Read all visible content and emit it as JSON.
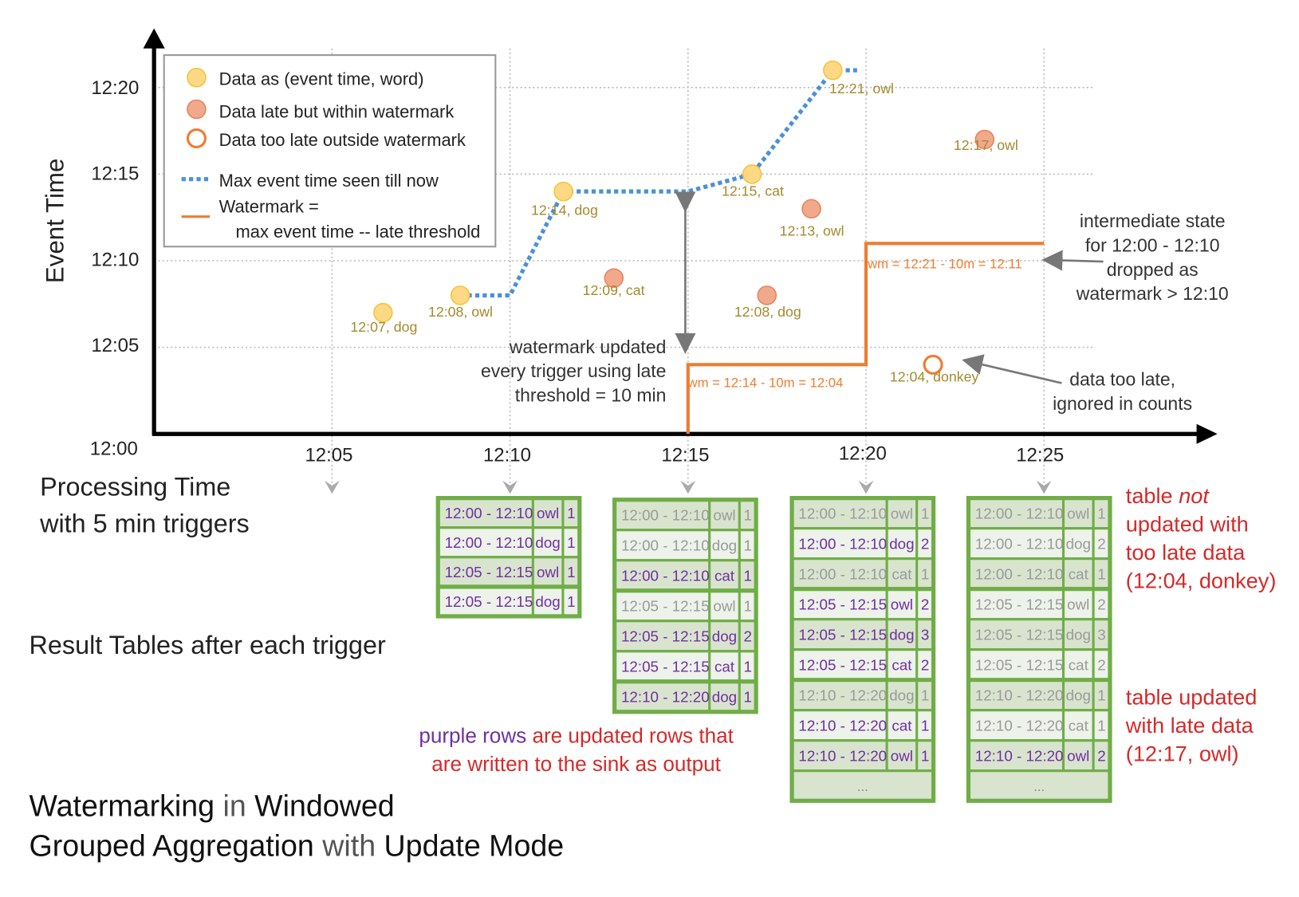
{
  "axes": {
    "y_label": "Event Time",
    "y_ticks": [
      "12:00",
      "12:05",
      "12:10",
      "12:15",
      "12:20"
    ],
    "x_ticks": [
      "12:05",
      "12:10",
      "12:15",
      "12:20",
      "12:25"
    ],
    "x_label_line1": "Processing Time",
    "x_label_line2": "with 5 min triggers"
  },
  "legend": {
    "data": "Data as (event time, word)",
    "late": "Data late but within watermark",
    "too_late": "Data too late outside watermark",
    "max_event": "Max event time seen till now",
    "watermark_1": "Watermark =",
    "watermark_2": "max event time -- late threshold"
  },
  "colors": {
    "on_time": "#fdd985",
    "late": "#f1a98b",
    "too_late": "#ed7d31",
    "max_line": "#4a90d9",
    "watermark": "#ed7d31",
    "table_border": "#70ad47",
    "updated_row": "#7030a0",
    "unchanged_row": "#9a9a9a",
    "note": "#d42a2a"
  },
  "points": [
    {
      "label": "12:07, dog",
      "processing": "12:06:26",
      "event": "12:07",
      "kind": "on_time"
    },
    {
      "label": "12:08, owl",
      "processing": "12:08:36",
      "event": "12:08",
      "kind": "on_time"
    },
    {
      "label": "12:14, dog",
      "processing": "12:11:30",
      "event": "12:14",
      "kind": "on_time"
    },
    {
      "label": "12:09, cat",
      "processing": "12:12:55",
      "event": "12:09",
      "kind": "late"
    },
    {
      "label": "12:15, cat",
      "processing": "12:16:48",
      "event": "12:15",
      "kind": "on_time"
    },
    {
      "label": "12:08, dog",
      "processing": "12:17:13",
      "event": "12:08",
      "kind": "late"
    },
    {
      "label": "12:13, owl",
      "processing": "12:18:28",
      "event": "12:13",
      "kind": "late"
    },
    {
      "label": "12:21, owl",
      "processing": "12:19:04",
      "event": "12:21",
      "kind": "on_time"
    },
    {
      "label": "12:04, donkey",
      "processing": "12:21:53",
      "event": "12:04",
      "kind": "too_late"
    },
    {
      "label": "12:17, owl",
      "processing": "12:23:20",
      "event": "12:17",
      "kind": "late"
    }
  ],
  "max_event_line": [
    [
      "12:08:36",
      "12:08"
    ],
    [
      "12:10",
      "12:08"
    ],
    [
      "12:11:30",
      "12:14"
    ],
    [
      "12:15",
      "12:14"
    ],
    [
      "12:16:48",
      "12:15"
    ],
    [
      "12:19:04",
      "12:21"
    ],
    [
      "12:19:45",
      "12:21"
    ]
  ],
  "watermark_line": [
    [
      "12:15",
      "12:00"
    ],
    [
      "12:15",
      "12:04"
    ],
    [
      "12:20",
      "12:04"
    ],
    [
      "12:20",
      "12:11"
    ],
    [
      "12:25",
      "12:11"
    ]
  ],
  "annotations": {
    "wm1": "wm = 12:14 - 10m = 12:04",
    "wm2": "wm = 12:21 - 10m = 12:11",
    "wm_updated": [
      "watermark updated",
      "every trigger using late",
      "threshold = 10 min"
    ],
    "intermediate": [
      "intermediate state",
      "for 12:00 - 12:10",
      "dropped as",
      "watermark > 12:10"
    ],
    "too_late": [
      "data too late,",
      "ignored in counts"
    ]
  },
  "result_tables_label": "Result Tables after each trigger",
  "tables": [
    {
      "trigger": "12:10",
      "rows": [
        [
          "12:00 - 12:10",
          "owl",
          "1",
          true
        ],
        [
          "12:00 - 12:10",
          "dog",
          "1",
          true
        ],
        [
          "12:05 - 12:15",
          "owl",
          "1",
          true
        ],
        [
          "12:05 - 12:15",
          "dog",
          "1",
          true
        ]
      ],
      "more": false
    },
    {
      "trigger": "12:15",
      "rows": [
        [
          "12:00 - 12:10",
          "owl",
          "1",
          false
        ],
        [
          "12:00 - 12:10",
          "dog",
          "1",
          false
        ],
        [
          "12:00 - 12:10",
          "cat",
          "1",
          true
        ],
        [
          "12:05 - 12:15",
          "owl",
          "1",
          false
        ],
        [
          "12:05 - 12:15",
          "dog",
          "2",
          true
        ],
        [
          "12:05 - 12:15",
          "cat",
          "1",
          true
        ],
        [
          "12:10 - 12:20",
          "dog",
          "1",
          true
        ]
      ],
      "more": false
    },
    {
      "trigger": "12:20",
      "rows": [
        [
          "12:00 - 12:10",
          "owl",
          "1",
          false
        ],
        [
          "12:00 - 12:10",
          "dog",
          "2",
          true
        ],
        [
          "12:00 - 12:10",
          "cat",
          "1",
          false
        ],
        [
          "12:05 - 12:15",
          "owl",
          "2",
          true
        ],
        [
          "12:05 - 12:15",
          "dog",
          "3",
          true
        ],
        [
          "12:05 - 12:15",
          "cat",
          "2",
          true
        ],
        [
          "12:10 - 12:20",
          "dog",
          "1",
          false
        ],
        [
          "12:10 - 12:20",
          "cat",
          "1",
          true
        ],
        [
          "12:10 - 12:20",
          "owl",
          "1",
          true
        ]
      ],
      "more": true
    },
    {
      "trigger": "12:25",
      "rows": [
        [
          "12:00 - 12:10",
          "owl",
          "1",
          false
        ],
        [
          "12:00 - 12:10",
          "dog",
          "2",
          false
        ],
        [
          "12:00 - 12:10",
          "cat",
          "1",
          false
        ],
        [
          "12:05 - 12:15",
          "owl",
          "2",
          false
        ],
        [
          "12:05 - 12:15",
          "dog",
          "3",
          false
        ],
        [
          "12:05 - 12:15",
          "cat",
          "2",
          false
        ],
        [
          "12:10 - 12:20",
          "dog",
          "1",
          false
        ],
        [
          "12:10 - 12:20",
          "cat",
          "1",
          false
        ],
        [
          "12:10 - 12:20",
          "owl",
          "2",
          true
        ]
      ],
      "more": true
    }
  ],
  "more_label": "...",
  "notes": {
    "purple": "purple rows",
    "purple_rest": " are updated rows that",
    "purple_line2": "are written to the sink as output",
    "not_updated": [
      "table ",
      "not",
      "updated with",
      "too late data",
      "(12:04, donkey)"
    ],
    "updated": [
      "table updated",
      "with late data",
      "(12:17, owl)"
    ]
  },
  "title": {
    "w1": "Watermarking",
    "w2": " in ",
    "w3": "Windowed",
    "w4": "Grouped Aggregation",
    "w5": " with ",
    "w6": "Update Mode"
  }
}
